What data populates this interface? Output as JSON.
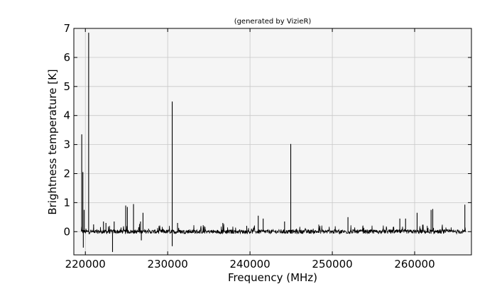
{
  "chart_data": {
    "type": "line",
    "title": "(generated by VizieR)",
    "xlabel": "Frequency (MHz)",
    "ylabel": "Brightness temperature [K]",
    "xlim": [
      218600,
      266900
    ],
    "ylim": [
      -0.8,
      7.0
    ],
    "x_ticks": [
      220000,
      230000,
      240000,
      250000,
      260000
    ],
    "x_tick_labels": [
      "220000",
      "230000",
      "240000",
      "250000",
      "260000"
    ],
    "y_ticks": [
      0,
      1,
      2,
      3,
      4,
      5,
      6,
      7
    ],
    "y_tick_labels": [
      "0",
      "1",
      "2",
      "3",
      "4",
      "5",
      "6",
      "7"
    ],
    "grid": true,
    "background": "#f5f5f5",
    "line_color": "#000000",
    "x_range": [
      219500,
      266200
    ],
    "baseline": 0.0,
    "noise_level": 0.07,
    "series": [
      {
        "peaks": [
          {
            "x": 219560,
            "y": 3.35
          },
          {
            "x": 219700,
            "y": 2.05
          },
          {
            "x": 219850,
            "y": 0.75
          },
          {
            "x": 220400,
            "y": 6.85
          },
          {
            "x": 221000,
            "y": 0.25
          },
          {
            "x": 222200,
            "y": 0.35
          },
          {
            "x": 222500,
            "y": 0.3
          },
          {
            "x": 223500,
            "y": 0.35
          },
          {
            "x": 224900,
            "y": 0.9
          },
          {
            "x": 225100,
            "y": 0.85
          },
          {
            "x": 225850,
            "y": 0.95
          },
          {
            "x": 226700,
            "y": 0.35
          },
          {
            "x": 227000,
            "y": 0.65
          },
          {
            "x": 230550,
            "y": 4.48
          },
          {
            "x": 231200,
            "y": 0.3
          },
          {
            "x": 236700,
            "y": 0.3
          },
          {
            "x": 239600,
            "y": 0.2
          },
          {
            "x": 241000,
            "y": 0.55
          },
          {
            "x": 241600,
            "y": 0.45
          },
          {
            "x": 244200,
            "y": 0.35
          },
          {
            "x": 244950,
            "y": 3.02
          },
          {
            "x": 251900,
            "y": 0.5
          },
          {
            "x": 258200,
            "y": 0.45
          },
          {
            "x": 258900,
            "y": 0.45
          },
          {
            "x": 260300,
            "y": 0.65
          },
          {
            "x": 262000,
            "y": 0.75
          },
          {
            "x": 262200,
            "y": 0.78
          },
          {
            "x": 266100,
            "y": 0.93
          }
        ],
        "dips": [
          {
            "x": 219750,
            "y": -0.55
          },
          {
            "x": 223300,
            "y": -0.7
          },
          {
            "x": 226800,
            "y": -0.3
          },
          {
            "x": 230550,
            "y": -0.5
          }
        ]
      }
    ]
  }
}
